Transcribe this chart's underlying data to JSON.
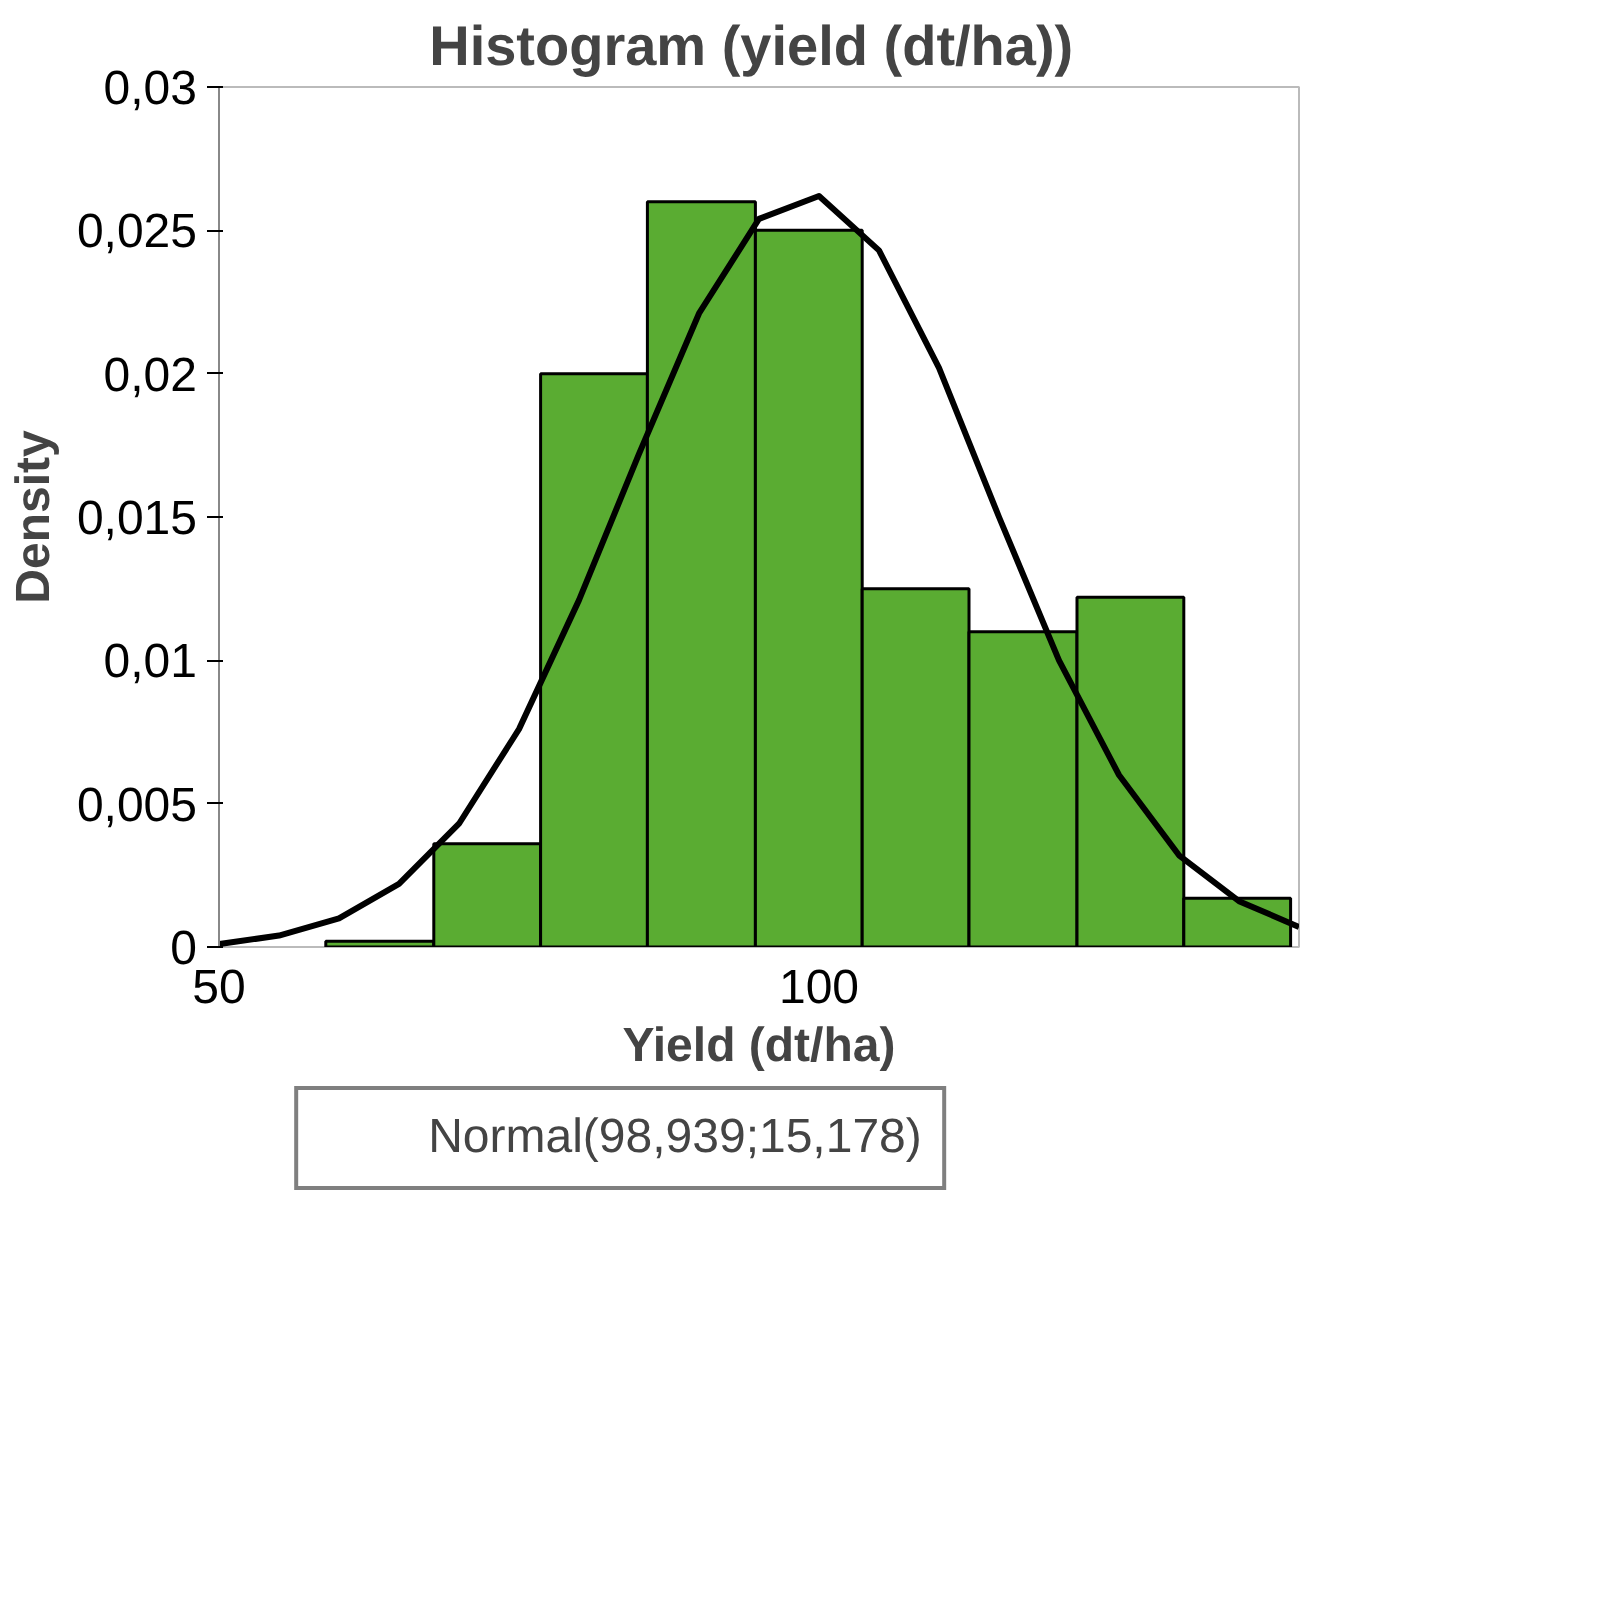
{
  "chart_data": {
    "type": "histogram",
    "title": "Histogram  (yield (dt/ha))",
    "xlabel": "Yield (dt/ha)",
    "ylabel": "Density",
    "bins": [
      58.9,
      67.9,
      76.8,
      85.7,
      94.7,
      103.6,
      112.5,
      121.5,
      130.4,
      139.3
    ],
    "values": [
      0.0002,
      0.0036,
      0.02,
      0.026,
      0.025,
      0.0125,
      0.011,
      0.0122,
      0.0017
    ],
    "color": "#5aac32",
    "series": [
      {
        "type": "line",
        "name": "Normal(98,939;15,178)",
        "color": "#000000",
        "x": [
          50,
          55,
          60,
          65,
          70,
          75,
          80,
          85,
          90,
          95,
          100,
          105,
          110,
          115,
          120,
          125,
          130,
          135,
          140
        ],
        "values": [
          0.0001,
          0.0004,
          0.001,
          0.0022,
          0.0043,
          0.0076,
          0.0121,
          0.0172,
          0.0221,
          0.0254,
          0.0262,
          0.0243,
          0.0202,
          0.015,
          0.01,
          0.006,
          0.0032,
          0.0016,
          0.0007
        ]
      }
    ],
    "xlim": [
      50,
      140
    ],
    "ylim": [
      0,
      0.03
    ],
    "xticks": [
      50,
      100
    ],
    "yticks": [
      0,
      {
        "value": 0.005,
        "label": "0,005"
      },
      {
        "value": 0.01,
        "label": "0,01"
      },
      {
        "value": 0.015,
        "label": "0,015"
      },
      {
        "value": 0.02,
        "label": "0,02"
      },
      {
        "value": 0.025,
        "label": "0,025"
      },
      {
        "value": 0.03,
        "label": "0,03"
      }
    ],
    "grid": false,
    "legend": "bottom"
  }
}
